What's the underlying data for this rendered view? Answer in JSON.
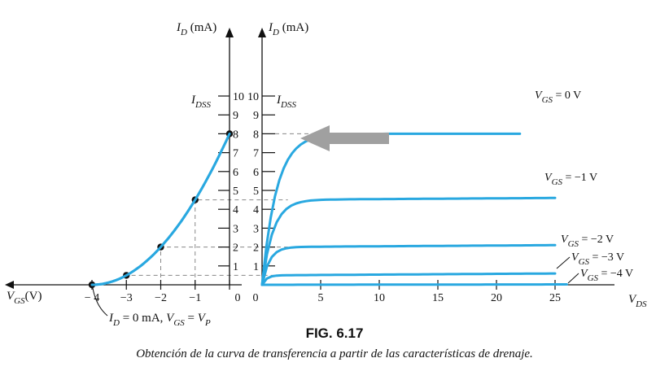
{
  "figure": {
    "number": "FIG. 6.17",
    "caption": "Obtención de la curva de transferencia a partir de las características de drenaje."
  },
  "labels": {
    "id_main": "I",
    "id_sub": "D",
    "id_unit": " (mA)",
    "idss_main": "I",
    "idss_sub": "DSS",
    "vgs_axis_main": "V",
    "vgs_axis_sub": "GS",
    "vgs_axis_unit": "(V)",
    "vds_main": "V",
    "vds_sub": "DS",
    "vp_annotation": {
      "part1": "I",
      "sub1": "D",
      "part2": " = 0 mA, ",
      "part3": "V",
      "sub3": "GS",
      "part4": " = ",
      "part5": "V",
      "sub5": "P"
    }
  },
  "colors": {
    "curve": "#29a8e0",
    "arrow": "#a0a0a0",
    "axis": "#111111"
  },
  "chart_data": [
    {
      "type": "line",
      "title": "",
      "xlabel": "VGS (V)",
      "ylabel": "ID (mA)",
      "xlim": [
        -4,
        0
      ],
      "ylim": [
        0,
        10
      ],
      "x_ticks": [
        "− 4",
        "−3",
        "−2",
        "−1",
        "0"
      ],
      "y_ticks": [
        "1",
        "2",
        "3",
        "4",
        "5",
        "6",
        "7",
        "8",
        "9",
        "10"
      ],
      "idss_ma": 8,
      "vp_v": -4,
      "points": [
        {
          "x": -4,
          "y": 0
        },
        {
          "x": -3,
          "y": 0.5
        },
        {
          "x": -2,
          "y": 2
        },
        {
          "x": -1,
          "y": 4.5
        },
        {
          "x": 0,
          "y": 8
        }
      ]
    },
    {
      "type": "line",
      "title": "",
      "xlabel": "VDS",
      "ylabel": "ID (mA)",
      "xlim": [
        0,
        25
      ],
      "ylim": [
        0,
        10
      ],
      "x_ticks": [
        "0",
        "5",
        "10",
        "15",
        "20",
        "25"
      ],
      "y_ticks": [
        "1",
        "2",
        "3",
        "4",
        "5",
        "6",
        "7",
        "8",
        "9",
        "10"
      ],
      "series": [
        {
          "name": "VGS = 0 V",
          "label_main": "V",
          "label_sub": "GS",
          "label_value": " = 0 V",
          "saturation_ma": 8,
          "knee_v": 4
        },
        {
          "name": "VGS = −1 V",
          "label_main": "V",
          "label_sub": "GS",
          "label_value": " = −1 V",
          "saturation_ma": 4.5,
          "knee_v": 3
        },
        {
          "name": "VGS = −2 V",
          "label_main": "V",
          "label_sub": "GS",
          "label_value": " = −2 V",
          "saturation_ma": 2,
          "knee_v": 2
        },
        {
          "name": "VGS = −3 V",
          "label_main": "V",
          "label_sub": "GS",
          "label_value": " = −3 V",
          "saturation_ma": 0.5,
          "knee_v": 1.2
        },
        {
          "name": "VGS = −4 V",
          "label_main": "V",
          "label_sub": "GS",
          "label_value": " = −4 V",
          "saturation_ma": 0,
          "knee_v": 0
        }
      ]
    }
  ]
}
